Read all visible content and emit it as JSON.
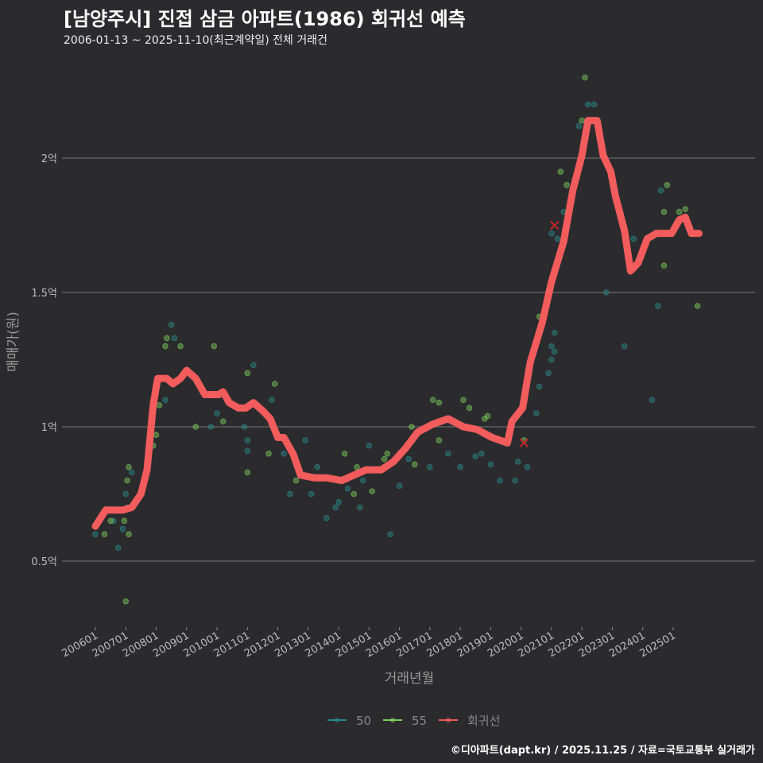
{
  "title": "[남양주시] 진접 삼금 아파트(1986) 회귀선 예측",
  "subtitle": "2006-01-13 ~ 2025-11-10(최근계약일) 전체 거래건",
  "footer": "©디아파트(dapt.kr) / 2025.11.25 / 자료=국토교통부 실거래가",
  "chart_data": {
    "type": "scatter",
    "xlabel": "거래년월",
    "ylabel": "매매가(원)",
    "xlim": [
      2005.0,
      2026.3
    ],
    "ylim": [
      0.27,
      2.36
    ],
    "x_ticks": [
      {
        "v": 2006,
        "label": "200601"
      },
      {
        "v": 2007,
        "label": "200701"
      },
      {
        "v": 2008,
        "label": "200801"
      },
      {
        "v": 2009,
        "label": "200901"
      },
      {
        "v": 2010,
        "label": "201001"
      },
      {
        "v": 2011,
        "label": "201101"
      },
      {
        "v": 2012,
        "label": "201201"
      },
      {
        "v": 2013,
        "label": "201301"
      },
      {
        "v": 2014,
        "label": "201401"
      },
      {
        "v": 2015,
        "label": "201501"
      },
      {
        "v": 2016,
        "label": "201601"
      },
      {
        "v": 2017,
        "label": "201701"
      },
      {
        "v": 2018,
        "label": "201801"
      },
      {
        "v": 2019,
        "label": "201901"
      },
      {
        "v": 2020,
        "label": "202001"
      },
      {
        "v": 2021,
        "label": "202101"
      },
      {
        "v": 2022,
        "label": "202201"
      },
      {
        "v": 2023,
        "label": "202301"
      },
      {
        "v": 2024,
        "label": "202401"
      },
      {
        "v": 2025,
        "label": "202501"
      }
    ],
    "y_ticks": [
      {
        "v": 0.5,
        "label": "0.5억"
      },
      {
        "v": 1,
        "label": "1억"
      },
      {
        "v": 1.5,
        "label": "1.5억"
      },
      {
        "v": 2,
        "label": "2억"
      }
    ],
    "grid": true,
    "legend_position": "bottom",
    "series": [
      {
        "name": "50",
        "color": "#2a8a8a",
        "points": [
          [
            2006.0,
            0.6
          ],
          [
            2006.6,
            0.65
          ],
          [
            2006.75,
            0.55
          ],
          [
            2006.9,
            0.62
          ],
          [
            2007.0,
            0.75
          ],
          [
            2007.2,
            0.83
          ],
          [
            2007.05,
            0.7
          ],
          [
            2008.3,
            1.1
          ],
          [
            2008.5,
            1.38
          ],
          [
            2008.6,
            1.33
          ],
          [
            2009.8,
            1.0
          ],
          [
            2010.0,
            1.05
          ],
          [
            2010.9,
            1.0
          ],
          [
            2011.0,
            0.95
          ],
          [
            2011.0,
            0.91
          ],
          [
            2011.2,
            1.23
          ],
          [
            2011.8,
            1.1
          ],
          [
            2012.2,
            0.9
          ],
          [
            2012.4,
            0.75
          ],
          [
            2012.9,
            0.95
          ],
          [
            2013.1,
            0.75
          ],
          [
            2013.3,
            0.85
          ],
          [
            2013.6,
            0.66
          ],
          [
            2013.9,
            0.7
          ],
          [
            2014.0,
            0.72
          ],
          [
            2014.3,
            0.77
          ],
          [
            2014.7,
            0.7
          ],
          [
            2014.8,
            0.8
          ],
          [
            2015.0,
            0.93
          ],
          [
            2015.7,
            0.6
          ],
          [
            2016.0,
            0.78
          ],
          [
            2016.3,
            0.88
          ],
          [
            2017.0,
            0.85
          ],
          [
            2017.6,
            0.9
          ],
          [
            2018.0,
            0.85
          ],
          [
            2018.5,
            0.89
          ],
          [
            2018.7,
            0.9
          ],
          [
            2019.0,
            0.86
          ],
          [
            2019.3,
            0.8
          ],
          [
            2019.9,
            0.87
          ],
          [
            2019.8,
            0.8
          ],
          [
            2020.2,
            0.85
          ],
          [
            2020.5,
            1.05
          ],
          [
            2020.6,
            1.15
          ],
          [
            2020.9,
            1.2
          ],
          [
            2021.0,
            1.3
          ],
          [
            2021.0,
            1.25
          ],
          [
            2021.1,
            1.35
          ],
          [
            2021.1,
            1.28
          ],
          [
            2021.3,
            1.65
          ],
          [
            2021.4,
            1.8
          ],
          [
            2021.0,
            1.72
          ],
          [
            2021.2,
            1.7
          ],
          [
            2021.9,
            2.12
          ],
          [
            2022.2,
            2.2
          ],
          [
            2022.4,
            2.2
          ],
          [
            2022.8,
            1.5
          ],
          [
            2023.4,
            1.3
          ],
          [
            2023.7,
            1.7
          ],
          [
            2024.3,
            1.1
          ],
          [
            2024.5,
            1.45
          ],
          [
            2024.6,
            1.88
          ]
        ]
      },
      {
        "name": "55",
        "color": "#7ccc5e",
        "points": [
          [
            2006.3,
            0.6
          ],
          [
            2006.5,
            0.65
          ],
          [
            2006.95,
            0.65
          ],
          [
            2007.05,
            0.8
          ],
          [
            2007.1,
            0.85
          ],
          [
            2007.1,
            0.6
          ],
          [
            2007.0,
            0.35
          ],
          [
            2007.9,
            0.93
          ],
          [
            2008.0,
            0.97
          ],
          [
            2008.1,
            1.08
          ],
          [
            2008.3,
            1.3
          ],
          [
            2008.35,
            1.33
          ],
          [
            2008.8,
            1.3
          ],
          [
            2009.3,
            1.0
          ],
          [
            2009.9,
            1.3
          ],
          [
            2010.2,
            1.02
          ],
          [
            2011.0,
            1.2
          ],
          [
            2011.0,
            0.83
          ],
          [
            2011.7,
            0.9
          ],
          [
            2011.9,
            1.16
          ],
          [
            2012.6,
            0.8
          ],
          [
            2014.2,
            0.9
          ],
          [
            2014.5,
            0.75
          ],
          [
            2014.6,
            0.85
          ],
          [
            2015.1,
            0.76
          ],
          [
            2015.5,
            0.88
          ],
          [
            2015.6,
            0.9
          ],
          [
            2016.5,
            0.86
          ],
          [
            2016.4,
            1.0
          ],
          [
            2017.1,
            1.1
          ],
          [
            2017.3,
            1.09
          ],
          [
            2017.3,
            0.95
          ],
          [
            2018.1,
            1.1
          ],
          [
            2018.3,
            1.07
          ],
          [
            2018.8,
            1.03
          ],
          [
            2018.9,
            1.04
          ],
          [
            2020.1,
            0.95
          ],
          [
            2020.6,
            1.41
          ],
          [
            2021.3,
            1.95
          ],
          [
            2021.5,
            1.9
          ],
          [
            2022.0,
            2.14
          ],
          [
            2022.1,
            2.3
          ],
          [
            2024.7,
            1.8
          ],
          [
            2024.7,
            1.6
          ],
          [
            2024.8,
            1.9
          ],
          [
            2025.2,
            1.8
          ],
          [
            2025.4,
            1.81
          ],
          [
            2025.8,
            1.45
          ]
        ]
      },
      {
        "name": "회귀선",
        "color": "#f25c5c",
        "line": [
          [
            2006.0,
            0.63
          ],
          [
            2006.34,
            0.69
          ],
          [
            2006.9,
            0.69
          ],
          [
            2007.2,
            0.7
          ],
          [
            2007.5,
            0.75
          ],
          [
            2007.7,
            0.84
          ],
          [
            2007.9,
            1.08
          ],
          [
            2008.05,
            1.18
          ],
          [
            2008.35,
            1.18
          ],
          [
            2008.55,
            1.16
          ],
          [
            2008.8,
            1.18
          ],
          [
            2009.0,
            1.21
          ],
          [
            2009.3,
            1.18
          ],
          [
            2009.6,
            1.12
          ],
          [
            2010.05,
            1.12
          ],
          [
            2010.2,
            1.13
          ],
          [
            2010.4,
            1.09
          ],
          [
            2010.7,
            1.07
          ],
          [
            2010.95,
            1.07
          ],
          [
            2011.2,
            1.09
          ],
          [
            2011.5,
            1.06
          ],
          [
            2011.75,
            1.03
          ],
          [
            2012.0,
            0.96
          ],
          [
            2012.2,
            0.96
          ],
          [
            2012.5,
            0.9
          ],
          [
            2012.75,
            0.82
          ],
          [
            2013.2,
            0.81
          ],
          [
            2013.6,
            0.81
          ],
          [
            2014.1,
            0.8
          ],
          [
            2014.5,
            0.82
          ],
          [
            2014.9,
            0.84
          ],
          [
            2015.4,
            0.84
          ],
          [
            2015.8,
            0.87
          ],
          [
            2016.2,
            0.92
          ],
          [
            2016.6,
            0.98
          ],
          [
            2017.1,
            1.01
          ],
          [
            2017.6,
            1.03
          ],
          [
            2018.1,
            1.0
          ],
          [
            2018.55,
            0.99
          ],
          [
            2019.05,
            0.96
          ],
          [
            2019.55,
            0.94
          ],
          [
            2019.7,
            1.02
          ],
          [
            2020.05,
            1.07
          ],
          [
            2020.3,
            1.24
          ],
          [
            2020.7,
            1.39
          ],
          [
            2021.0,
            1.54
          ],
          [
            2021.4,
            1.69
          ],
          [
            2021.7,
            1.88
          ],
          [
            2022.0,
            2.01
          ],
          [
            2022.2,
            2.14
          ],
          [
            2022.5,
            2.14
          ],
          [
            2022.7,
            2.01
          ],
          [
            2022.95,
            1.95
          ],
          [
            2023.1,
            1.86
          ],
          [
            2023.4,
            1.73
          ],
          [
            2023.6,
            1.58
          ],
          [
            2023.85,
            1.61
          ],
          [
            2024.15,
            1.7
          ],
          [
            2024.45,
            1.72
          ],
          [
            2024.95,
            1.72
          ],
          [
            2025.2,
            1.77
          ],
          [
            2025.4,
            1.78
          ],
          [
            2025.6,
            1.72
          ],
          [
            2025.85,
            1.72
          ]
        ],
        "outliers": [
          [
            2021.1,
            1.75
          ],
          [
            2020.1,
            0.94
          ]
        ]
      }
    ]
  }
}
